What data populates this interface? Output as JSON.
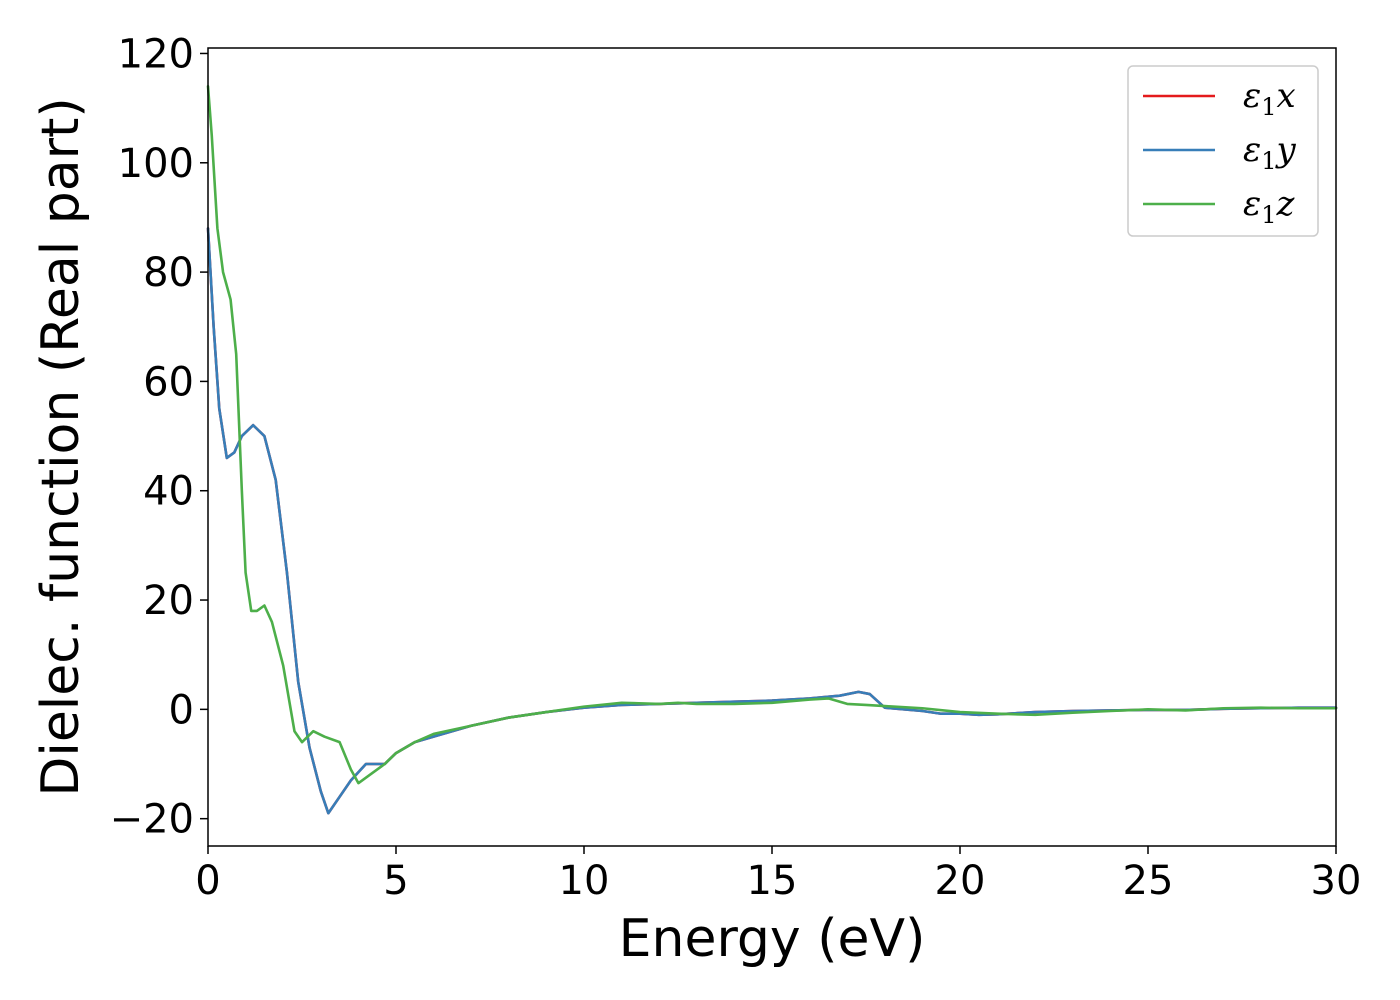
{
  "chart_data": {
    "type": "line",
    "title": "",
    "xlabel": "Energy (eV)",
    "ylabel": "Dielec. function (Real part)",
    "xlim": [
      0,
      30
    ],
    "ylim": [
      -25,
      121
    ],
    "xticks": [
      0,
      5,
      10,
      15,
      20,
      25,
      30
    ],
    "yticks": [
      -20,
      0,
      20,
      40,
      60,
      80,
      100,
      120
    ],
    "grid": false,
    "legend_position": "top-right",
    "series": [
      {
        "name": "ε1x",
        "legend_main": "ε",
        "legend_sub": "1",
        "legend_tail": "x",
        "color": "#e41a1c",
        "points": [
          [
            0,
            88
          ],
          [
            0.15,
            70
          ],
          [
            0.3,
            55
          ],
          [
            0.5,
            46
          ],
          [
            0.7,
            47
          ],
          [
            0.9,
            50
          ],
          [
            1.2,
            52
          ],
          [
            1.5,
            50
          ],
          [
            1.8,
            42
          ],
          [
            2.1,
            25
          ],
          [
            2.4,
            5
          ],
          [
            2.7,
            -7
          ],
          [
            3.0,
            -15
          ],
          [
            3.2,
            -19
          ],
          [
            3.5,
            -16
          ],
          [
            3.8,
            -13
          ],
          [
            4.2,
            -10
          ],
          [
            4.7,
            -10
          ],
          [
            5.0,
            -8
          ],
          [
            5.5,
            -6
          ],
          [
            6.0,
            -5
          ],
          [
            7.0,
            -3
          ],
          [
            8.0,
            -1.5
          ],
          [
            9.0,
            -0.5
          ],
          [
            10.0,
            0.3
          ],
          [
            11.0,
            0.8
          ],
          [
            12.0,
            1.0
          ],
          [
            13.0,
            1.2
          ],
          [
            14.0,
            1.4
          ],
          [
            15.0,
            1.6
          ],
          [
            16.0,
            2.0
          ],
          [
            16.8,
            2.5
          ],
          [
            17.3,
            3.2
          ],
          [
            17.6,
            2.8
          ],
          [
            18.0,
            0.3
          ],
          [
            18.5,
            0
          ],
          [
            19.0,
            -0.3
          ],
          [
            19.5,
            -0.8
          ],
          [
            20.0,
            -0.8
          ],
          [
            20.5,
            -1.0
          ],
          [
            21.0,
            -0.9
          ],
          [
            22.0,
            -0.5
          ],
          [
            23.0,
            -0.3
          ],
          [
            24.0,
            -0.2
          ],
          [
            25.0,
            -0.1
          ],
          [
            26.0,
            -0.1
          ],
          [
            27.0,
            0.1
          ],
          [
            28.0,
            0.2
          ],
          [
            29.0,
            0.3
          ],
          [
            30.0,
            0.3
          ]
        ]
      },
      {
        "name": "ε1y",
        "legend_main": "ε",
        "legend_sub": "1",
        "legend_tail": "y",
        "color": "#377eb8",
        "points": [
          [
            0,
            88
          ],
          [
            0.15,
            70
          ],
          [
            0.3,
            55
          ],
          [
            0.5,
            46
          ],
          [
            0.7,
            47
          ],
          [
            0.9,
            50
          ],
          [
            1.2,
            52
          ],
          [
            1.5,
            50
          ],
          [
            1.8,
            42
          ],
          [
            2.1,
            25
          ],
          [
            2.4,
            5
          ],
          [
            2.7,
            -7
          ],
          [
            3.0,
            -15
          ],
          [
            3.2,
            -19
          ],
          [
            3.5,
            -16
          ],
          [
            3.8,
            -13
          ],
          [
            4.2,
            -10
          ],
          [
            4.7,
            -10
          ],
          [
            5.0,
            -8
          ],
          [
            5.5,
            -6
          ],
          [
            6.0,
            -5
          ],
          [
            7.0,
            -3
          ],
          [
            8.0,
            -1.5
          ],
          [
            9.0,
            -0.5
          ],
          [
            10.0,
            0.3
          ],
          [
            11.0,
            0.8
          ],
          [
            12.0,
            1.0
          ],
          [
            13.0,
            1.2
          ],
          [
            14.0,
            1.4
          ],
          [
            15.0,
            1.6
          ],
          [
            16.0,
            2.0
          ],
          [
            16.8,
            2.5
          ],
          [
            17.3,
            3.2
          ],
          [
            17.6,
            2.8
          ],
          [
            18.0,
            0.3
          ],
          [
            18.5,
            0
          ],
          [
            19.0,
            -0.3
          ],
          [
            19.5,
            -0.8
          ],
          [
            20.0,
            -0.8
          ],
          [
            20.5,
            -1.0
          ],
          [
            21.0,
            -0.9
          ],
          [
            22.0,
            -0.5
          ],
          [
            23.0,
            -0.3
          ],
          [
            24.0,
            -0.2
          ],
          [
            25.0,
            -0.1
          ],
          [
            26.0,
            -0.1
          ],
          [
            27.0,
            0.1
          ],
          [
            28.0,
            0.2
          ],
          [
            29.0,
            0.3
          ],
          [
            30.0,
            0.3
          ]
        ]
      },
      {
        "name": "ε1z",
        "legend_main": "ε",
        "legend_sub": "1",
        "legend_tail": "z",
        "color": "#4daf4a",
        "points": [
          [
            0,
            114
          ],
          [
            0.1,
            105
          ],
          [
            0.25,
            88
          ],
          [
            0.4,
            80
          ],
          [
            0.6,
            75
          ],
          [
            0.75,
            65
          ],
          [
            0.9,
            40
          ],
          [
            1.0,
            25
          ],
          [
            1.15,
            18
          ],
          [
            1.3,
            18
          ],
          [
            1.5,
            19
          ],
          [
            1.7,
            16
          ],
          [
            2.0,
            8
          ],
          [
            2.3,
            -4
          ],
          [
            2.5,
            -6
          ],
          [
            2.8,
            -4
          ],
          [
            3.1,
            -5
          ],
          [
            3.5,
            -6
          ],
          [
            3.8,
            -11
          ],
          [
            4.0,
            -13.5
          ],
          [
            4.3,
            -12
          ],
          [
            4.7,
            -10
          ],
          [
            5.0,
            -8
          ],
          [
            5.5,
            -6
          ],
          [
            6.0,
            -4.5
          ],
          [
            7.0,
            -3
          ],
          [
            8.0,
            -1.5
          ],
          [
            9.0,
            -0.5
          ],
          [
            10.0,
            0.5
          ],
          [
            11.0,
            1.2
          ],
          [
            12.0,
            1.0
          ],
          [
            12.5,
            1.2
          ],
          [
            13.0,
            1.0
          ],
          [
            14.0,
            1.0
          ],
          [
            15.0,
            1.2
          ],
          [
            16.0,
            1.8
          ],
          [
            16.5,
            2.0
          ],
          [
            17.0,
            1.0
          ],
          [
            17.5,
            0.8
          ],
          [
            18.0,
            0.6
          ],
          [
            19.0,
            0.2
          ],
          [
            20.0,
            -0.5
          ],
          [
            21.0,
            -0.8
          ],
          [
            22.0,
            -1.0
          ],
          [
            23.0,
            -0.6
          ],
          [
            24.0,
            -0.3
          ],
          [
            25.0,
            0
          ],
          [
            26.0,
            -0.2
          ],
          [
            27.0,
            0.2
          ],
          [
            28.0,
            0.3
          ],
          [
            29.0,
            0.2
          ],
          [
            30.0,
            0.2
          ]
        ]
      }
    ]
  }
}
